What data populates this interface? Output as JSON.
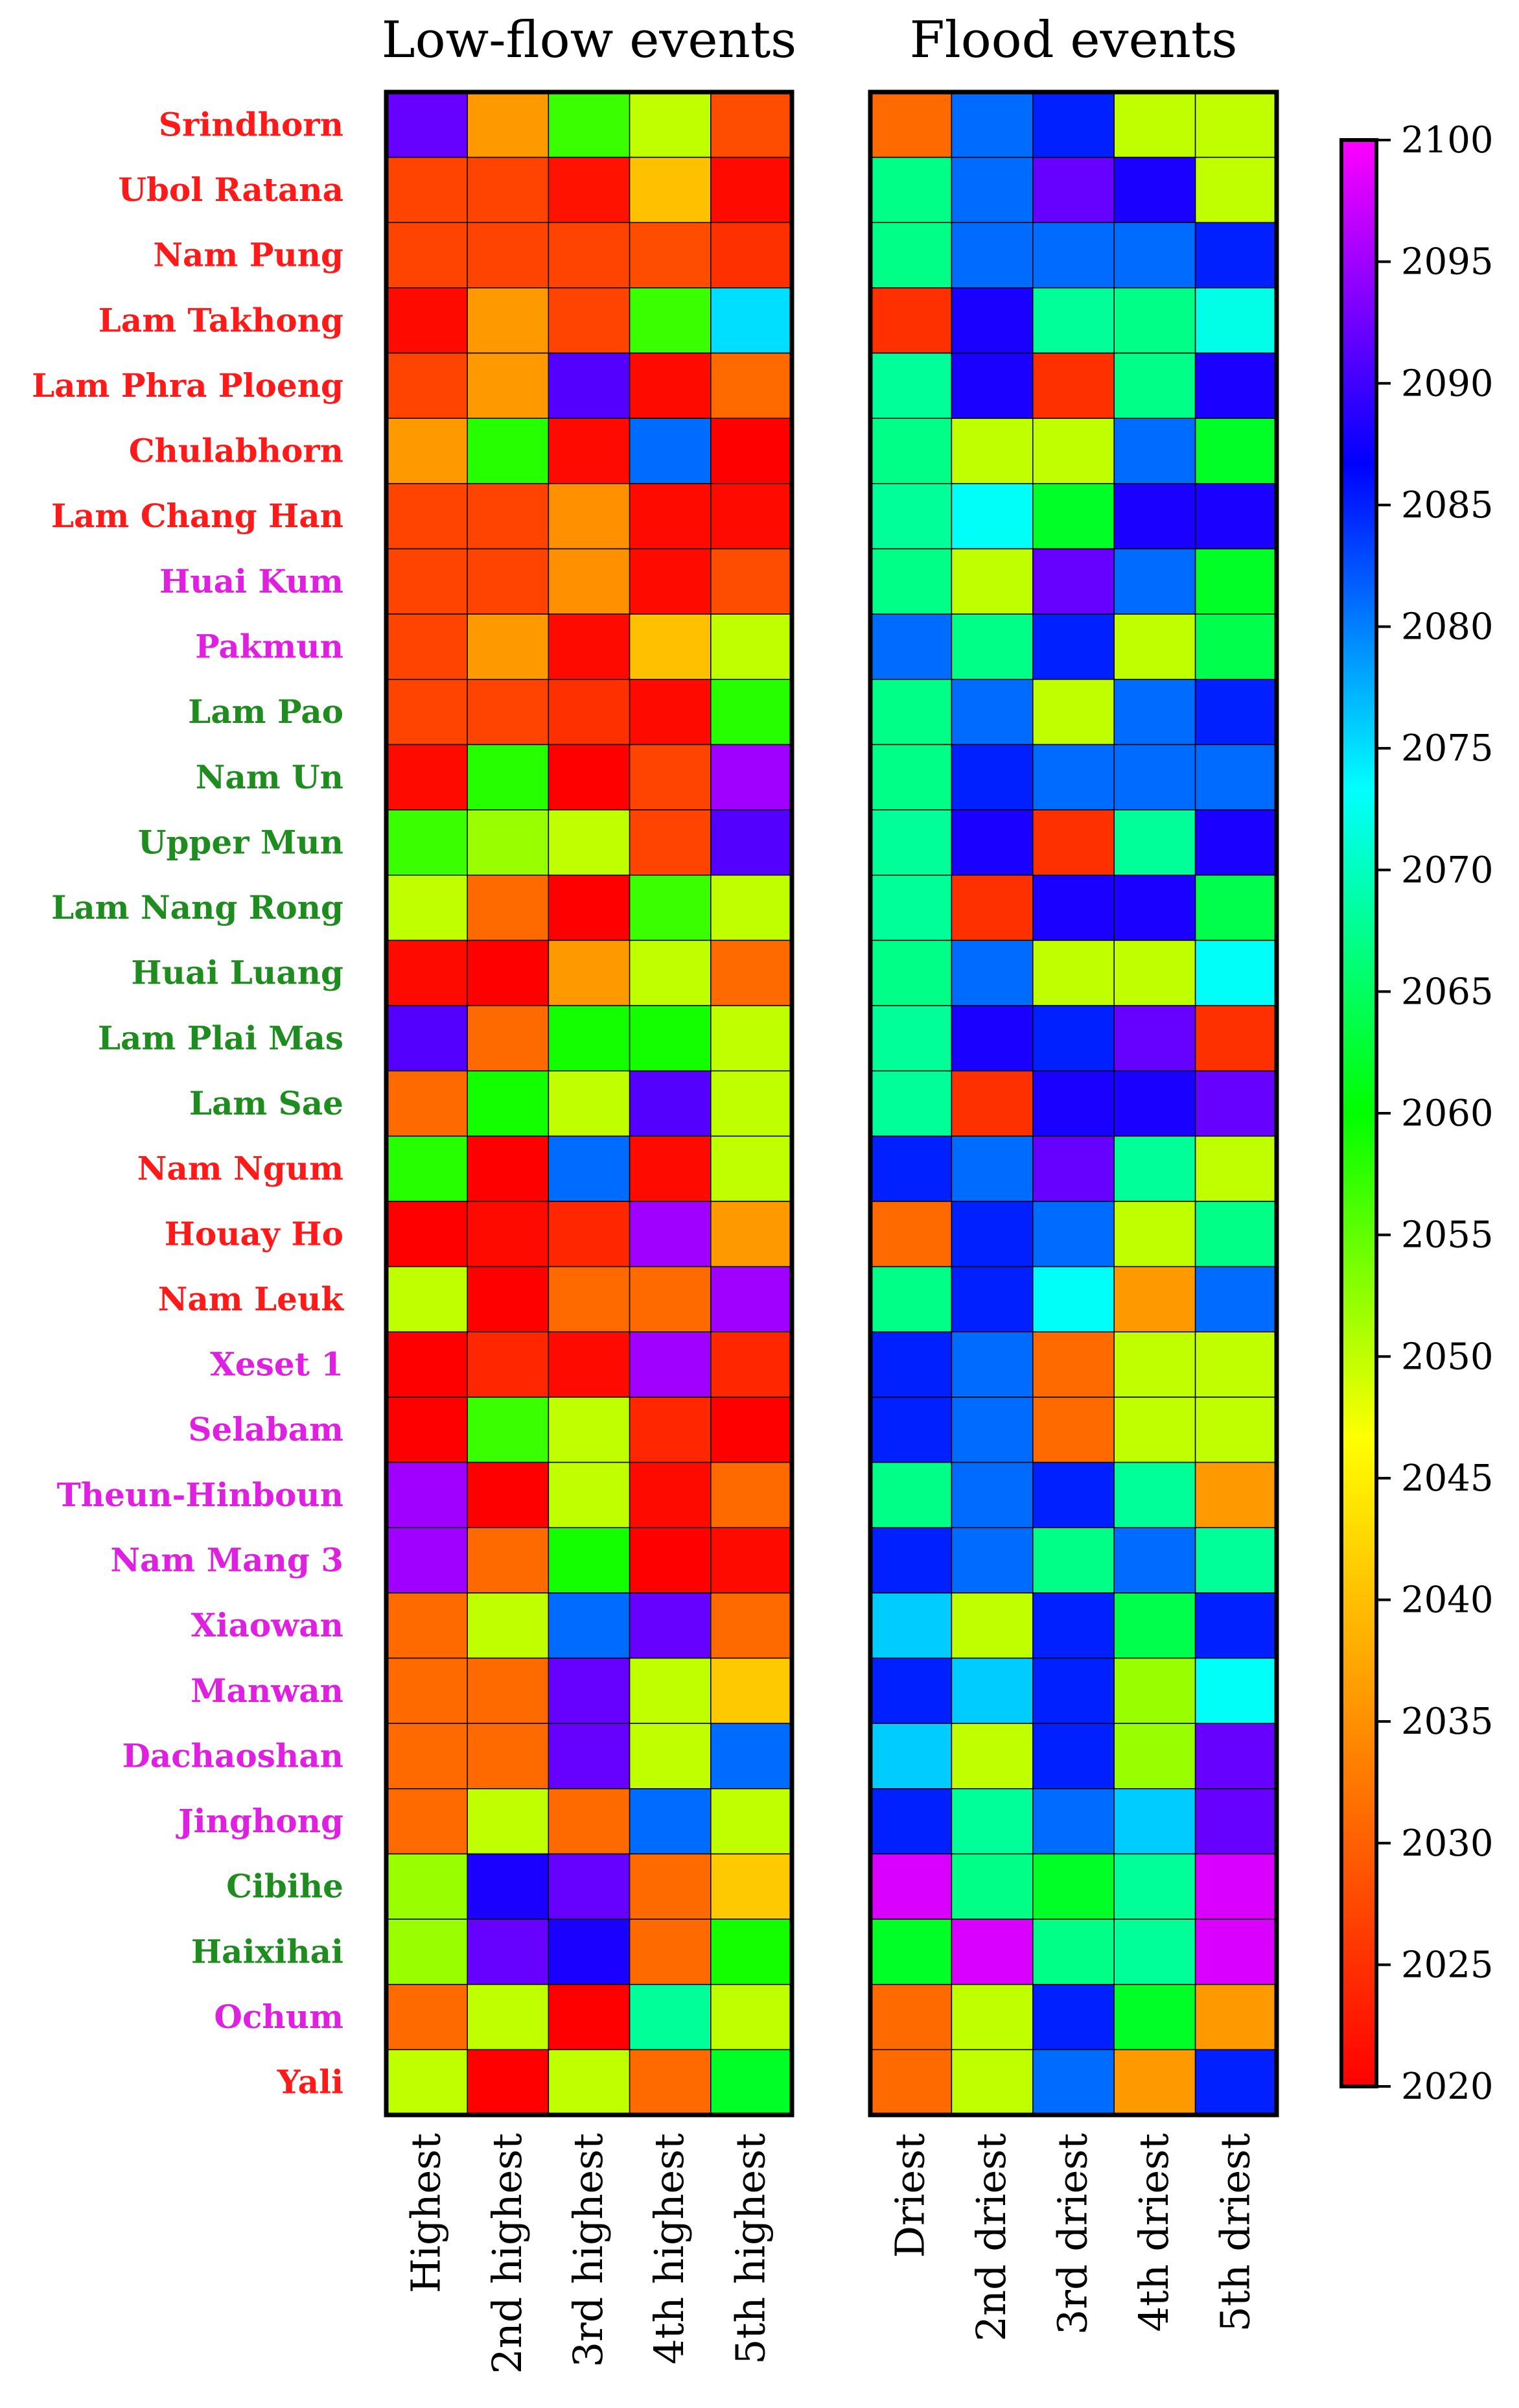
{
  "chart_data": {
    "type": "heatmap",
    "colormap": [
      "#ff0000",
      "#ff8000",
      "#ffff00",
      "#00ff00",
      "#00ffff",
      "#0000ff",
      "#ff00ff"
    ],
    "color_range": [
      2020,
      2100
    ],
    "colorbar_ticks": [
      2020,
      2025,
      2030,
      2035,
      2040,
      2045,
      2050,
      2055,
      2060,
      2065,
      2070,
      2075,
      2080,
      2085,
      2090,
      2095,
      2100
    ],
    "label_colors": {
      "red": "#ff1a1a",
      "magenta": "#e020e0",
      "green": "#1e8c1e"
    },
    "rows": [
      {
        "name": "Srindhorn",
        "color": "red"
      },
      {
        "name": "Ubol Ratana",
        "color": "red"
      },
      {
        "name": "Nam Pung",
        "color": "red"
      },
      {
        "name": "Lam Takhong",
        "color": "red"
      },
      {
        "name": "Lam Phra Ploeng",
        "color": "red"
      },
      {
        "name": "Chulabhorn",
        "color": "red"
      },
      {
        "name": "Lam Chang Han",
        "color": "red"
      },
      {
        "name": "Huai Kum",
        "color": "magenta"
      },
      {
        "name": "Pakmun",
        "color": "magenta"
      },
      {
        "name": "Lam Pao",
        "color": "green"
      },
      {
        "name": "Nam Un",
        "color": "green"
      },
      {
        "name": "Upper Mun",
        "color": "green"
      },
      {
        "name": "Lam Nang Rong",
        "color": "green"
      },
      {
        "name": "Huai Luang",
        "color": "green"
      },
      {
        "name": "Lam Plai Mas",
        "color": "green"
      },
      {
        "name": "Lam Sae",
        "color": "green"
      },
      {
        "name": "Nam Ngum",
        "color": "red"
      },
      {
        "name": "Houay Ho",
        "color": "red"
      },
      {
        "name": "Nam Leuk",
        "color": "red"
      },
      {
        "name": "Xeset 1",
        "color": "magenta"
      },
      {
        "name": "Selabam",
        "color": "magenta"
      },
      {
        "name": "Theun-Hinboun",
        "color": "magenta"
      },
      {
        "name": "Nam Mang 3",
        "color": "magenta"
      },
      {
        "name": "Xiaowan",
        "color": "magenta"
      },
      {
        "name": "Manwan",
        "color": "magenta"
      },
      {
        "name": "Dachaoshan",
        "color": "magenta"
      },
      {
        "name": "Jinghong",
        "color": "magenta"
      },
      {
        "name": "Cibihe",
        "color": "green"
      },
      {
        "name": "Haixihai",
        "color": "green"
      },
      {
        "name": "Ochum",
        "color": "magenta"
      },
      {
        "name": "Yali",
        "color": "red"
      }
    ],
    "panels": [
      {
        "title": "Low-flow  events",
        "columns": [
          "Highest",
          "2nd highest",
          "3rd highest",
          "4th highest",
          "5th highest"
        ],
        "values": [
          [
            2092,
            2036,
            2057,
            2050,
            2028
          ],
          [
            2027,
            2027,
            2022,
            2040,
            2021
          ],
          [
            2027,
            2027,
            2027,
            2028,
            2025
          ],
          [
            2021,
            2036,
            2027,
            2057,
            2075
          ],
          [
            2027,
            2036,
            2091,
            2021,
            2031
          ],
          [
            2036,
            2058,
            2021,
            2081,
            2020
          ],
          [
            2027,
            2027,
            2035,
            2021,
            2021
          ],
          [
            2027,
            2027,
            2035,
            2021,
            2028
          ],
          [
            2027,
            2036,
            2021,
            2040,
            2050
          ],
          [
            2027,
            2027,
            2025,
            2021,
            2058
          ],
          [
            2021,
            2058,
            2020,
            2027,
            2095
          ],
          [
            2057,
            2052,
            2050,
            2027,
            2091
          ],
          [
            2050,
            2031,
            2020,
            2057,
            2050
          ],
          [
            2021,
            2020,
            2036,
            2050,
            2031
          ],
          [
            2091,
            2031,
            2059,
            2059,
            2050
          ],
          [
            2031,
            2059,
            2050,
            2091,
            2050
          ],
          [
            2058,
            2020,
            2081,
            2021,
            2050
          ],
          [
            2020,
            2021,
            2024,
            2095,
            2036
          ],
          [
            2050,
            2020,
            2031,
            2031,
            2095
          ],
          [
            2020,
            2024,
            2021,
            2095,
            2024
          ],
          [
            2020,
            2057,
            2050,
            2024,
            2020
          ],
          [
            2095,
            2020,
            2050,
            2021,
            2031
          ],
          [
            2095,
            2031,
            2059,
            2020,
            2021
          ],
          [
            2031,
            2050,
            2081,
            2092,
            2031
          ],
          [
            2031,
            2031,
            2092,
            2050,
            2041
          ],
          [
            2031,
            2031,
            2092,
            2050,
            2081
          ],
          [
            2031,
            2050,
            2031,
            2081,
            2050
          ],
          [
            2052,
            2088,
            2092,
            2031,
            2041
          ],
          [
            2052,
            2092,
            2088,
            2031,
            2059
          ],
          [
            2031,
            2050,
            2020,
            2068,
            2050
          ],
          [
            2050,
            2020,
            2050,
            2031,
            2062
          ]
        ]
      },
      {
        "title": "Flood events",
        "columns": [
          "Driest",
          "2nd driest",
          "3rd driest",
          "4th driest",
          "5th driest"
        ],
        "values": [
          [
            2031,
            2081,
            2085,
            2050,
            2050
          ],
          [
            2067,
            2081,
            2092,
            2088,
            2050
          ],
          [
            2067,
            2081,
            2081,
            2081,
            2085
          ],
          [
            2025,
            2088,
            2068,
            2067,
            2072
          ],
          [
            2068,
            2088,
            2025,
            2067,
            2088
          ],
          [
            2067,
            2050,
            2050,
            2081,
            2062
          ],
          [
            2068,
            2073,
            2062,
            2088,
            2088
          ],
          [
            2067,
            2050,
            2092,
            2081,
            2062
          ],
          [
            2081,
            2067,
            2085,
            2050,
            2064
          ],
          [
            2067,
            2081,
            2050,
            2081,
            2085
          ],
          [
            2067,
            2085,
            2081,
            2081,
            2081
          ],
          [
            2068,
            2088,
            2025,
            2068,
            2088
          ],
          [
            2068,
            2025,
            2088,
            2088,
            2064
          ],
          [
            2067,
            2081,
            2050,
            2050,
            2073
          ],
          [
            2068,
            2088,
            2085,
            2092,
            2025
          ],
          [
            2068,
            2025,
            2088,
            2088,
            2092
          ],
          [
            2085,
            2081,
            2092,
            2068,
            2050
          ],
          [
            2031,
            2085,
            2081,
            2050,
            2067
          ],
          [
            2067,
            2085,
            2073,
            2036,
            2081
          ],
          [
            2085,
            2081,
            2031,
            2050,
            2050
          ],
          [
            2085,
            2081,
            2031,
            2050,
            2050
          ],
          [
            2067,
            2081,
            2085,
            2068,
            2036
          ],
          [
            2085,
            2081,
            2067,
            2081,
            2068
          ],
          [
            2076,
            2050,
            2085,
            2064,
            2085
          ],
          [
            2085,
            2076,
            2085,
            2052,
            2073
          ],
          [
            2076,
            2050,
            2085,
            2052,
            2092
          ],
          [
            2085,
            2068,
            2081,
            2076,
            2092
          ],
          [
            2098,
            2067,
            2062,
            2068,
            2098
          ],
          [
            2062,
            2098,
            2067,
            2068,
            2098
          ],
          [
            2031,
            2050,
            2085,
            2062,
            2036
          ],
          [
            2031,
            2050,
            2081,
            2036,
            2085
          ]
        ]
      }
    ]
  }
}
